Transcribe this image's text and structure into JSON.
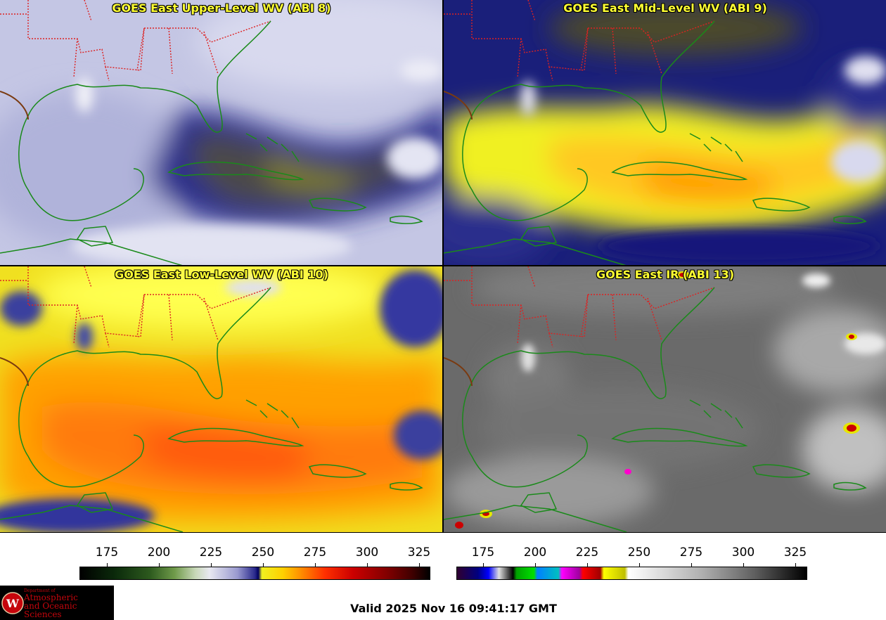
{
  "panels": {
    "upper": {
      "title": "GOES East Upper-Level WV (ABI 8)"
    },
    "mid": {
      "title": "GOES East Mid-Level WV (ABI 9)"
    },
    "low": {
      "title": "GOES East Low-Level WV (ABI 10)"
    },
    "ir": {
      "title": "GOES East IR (ABI 13)"
    }
  },
  "colorbars": {
    "wv": {
      "ticks": [
        "175",
        "200",
        "225",
        "250",
        "275",
        "300",
        "325"
      ]
    },
    "ir": {
      "ticks": [
        "175",
        "200",
        "225",
        "250",
        "275",
        "300",
        "325"
      ]
    }
  },
  "logo": {
    "line1": "Department of",
    "line2": "Atmospheric",
    "line3": "and Oceanic Sciences",
    "emblem": "W"
  },
  "footer": {
    "valid": "Valid 2025 Nov 16 09:41:17 GMT"
  },
  "colors": {
    "title": "#ffff33",
    "border": "#cc2222",
    "coast": "#1a8a1a",
    "logo_red": "#c5050c"
  }
}
